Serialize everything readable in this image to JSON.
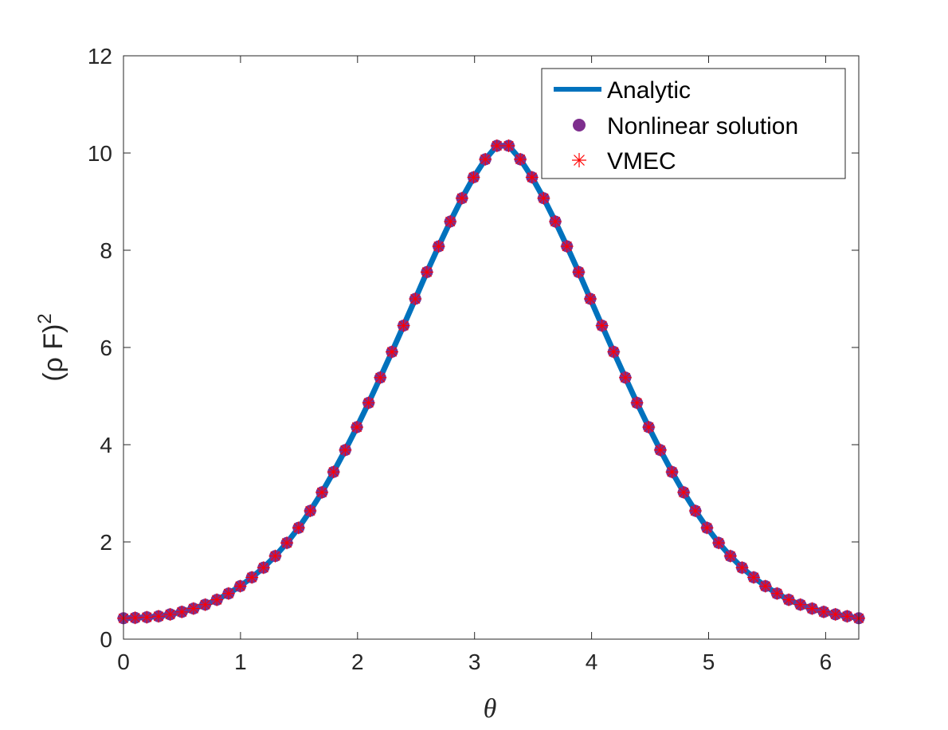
{
  "chart_data": {
    "type": "line",
    "title": "",
    "xlabel": "θ",
    "ylabel_main": "(ρ F)",
    "ylabel_sup": "2",
    "xlim": [
      0,
      6.2832
    ],
    "ylim": [
      0,
      12
    ],
    "xticks": [
      0,
      1,
      2,
      3,
      4,
      5,
      6
    ],
    "yticks": [
      0,
      2,
      4,
      6,
      8,
      10,
      12
    ],
    "grid": false,
    "legend_position": "top-right",
    "colors": {
      "analytic": "#0072BD",
      "nonlinear": "#7E2F8E",
      "vmec": "#FF0000"
    },
    "series": [
      {
        "name": "Analytic",
        "style": "line"
      },
      {
        "name": "Nonlinear solution",
        "style": "filled-circle-markers"
      },
      {
        "name": "VMEC",
        "style": "asterisk-markers"
      }
    ],
    "x": [
      0,
      0.0997,
      0.1995,
      0.2992,
      0.3989,
      0.4987,
      0.5984,
      0.6981,
      0.7979,
      0.8976,
      0.9973,
      1.0971,
      1.1968,
      1.2965,
      1.3963,
      1.496,
      1.5957,
      1.6955,
      1.7952,
      1.8949,
      1.9947,
      2.0944,
      2.1941,
      2.2939,
      2.3936,
      2.4933,
      2.5931,
      2.6928,
      2.7925,
      2.8923,
      2.992,
      3.0917,
      3.1915,
      3.2912,
      3.3909,
      3.4907,
      3.5904,
      3.6901,
      3.7899,
      3.8896,
      3.9893,
      4.0891,
      4.1888,
      4.2885,
      4.3883,
      4.488,
      4.5877,
      4.6875,
      4.7872,
      4.8869,
      4.9867,
      5.0864,
      5.1861,
      5.2859,
      5.3856,
      5.4853,
      5.5851,
      5.6848,
      5.7845,
      5.8843,
      5.984,
      6.0837,
      6.1835,
      6.2832
    ],
    "y": [
      0.43,
      0.44,
      0.45,
      0.47,
      0.51,
      0.56,
      0.63,
      0.71,
      0.81,
      0.94,
      1.09,
      1.27,
      1.47,
      1.71,
      1.98,
      2.29,
      2.64,
      3.02,
      3.44,
      3.89,
      4.36,
      4.86,
      5.38,
      5.91,
      6.45,
      7.0,
      7.55,
      8.08,
      8.59,
      9.07,
      9.5,
      9.87,
      10.15,
      10.15,
      9.87,
      9.5,
      9.07,
      8.59,
      8.08,
      7.55,
      7.0,
      6.45,
      5.91,
      5.38,
      4.86,
      4.36,
      3.89,
      3.44,
      3.02,
      2.64,
      2.29,
      1.98,
      1.71,
      1.47,
      1.27,
      1.09,
      0.94,
      0.81,
      0.71,
      0.63,
      0.56,
      0.51,
      0.47,
      0.43
    ]
  }
}
